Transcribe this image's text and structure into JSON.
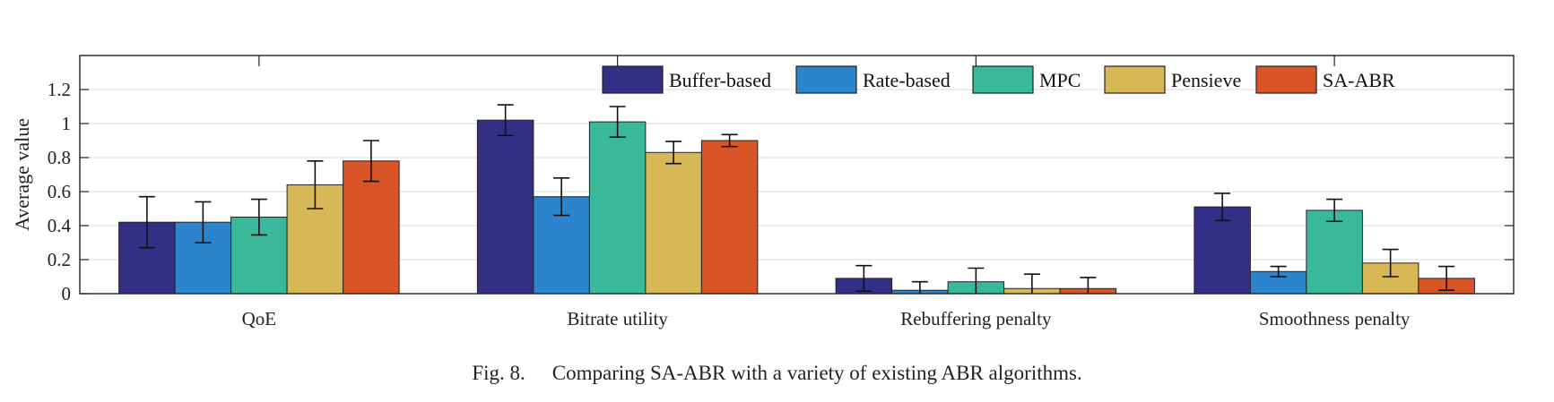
{
  "caption": {
    "label": "Fig. 8.",
    "text": "Comparing SA-ABR with a variety of existing ABR algorithms."
  },
  "chart_data": {
    "type": "bar",
    "ylabel": "Average value",
    "xlabel": "",
    "ylim": [
      0,
      1.4
    ],
    "yticks": [
      0,
      0.2,
      0.4,
      0.6,
      0.8,
      1,
      1.2
    ],
    "ytick_labels": [
      "0",
      "0.2",
      "0.4",
      "0.6",
      "0.8",
      "1",
      "1.2"
    ],
    "grid": "horizontal",
    "legend_position": "top-right",
    "categories": [
      "QoE",
      "Bitrate utility",
      "Rebuffering penalty",
      "Smoothness penalty"
    ],
    "series": [
      {
        "name": "Buffer-based",
        "color": "#332f87",
        "values": [
          0.42,
          1.02,
          0.09,
          0.51
        ],
        "err": [
          0.15,
          0.09,
          0.075,
          0.08
        ]
      },
      {
        "name": "Rate-based",
        "color": "#2b84cc",
        "values": [
          0.42,
          0.57,
          0.02,
          0.13
        ],
        "err": [
          0.12,
          0.11,
          0.05,
          0.03
        ]
      },
      {
        "name": "MPC",
        "color": "#39b89a",
        "values": [
          0.45,
          1.01,
          0.07,
          0.49
        ],
        "err": [
          0.105,
          0.09,
          0.08,
          0.065
        ]
      },
      {
        "name": "Pensieve",
        "color": "#d8b856",
        "values": [
          0.64,
          0.83,
          0.03,
          0.18
        ],
        "err": [
          0.14,
          0.065,
          0.085,
          0.08
        ]
      },
      {
        "name": "SA-ABR",
        "color": "#d95426",
        "values": [
          0.78,
          0.9,
          0.03,
          0.09
        ],
        "err": [
          0.12,
          0.035,
          0.065,
          0.07
        ]
      }
    ]
  }
}
